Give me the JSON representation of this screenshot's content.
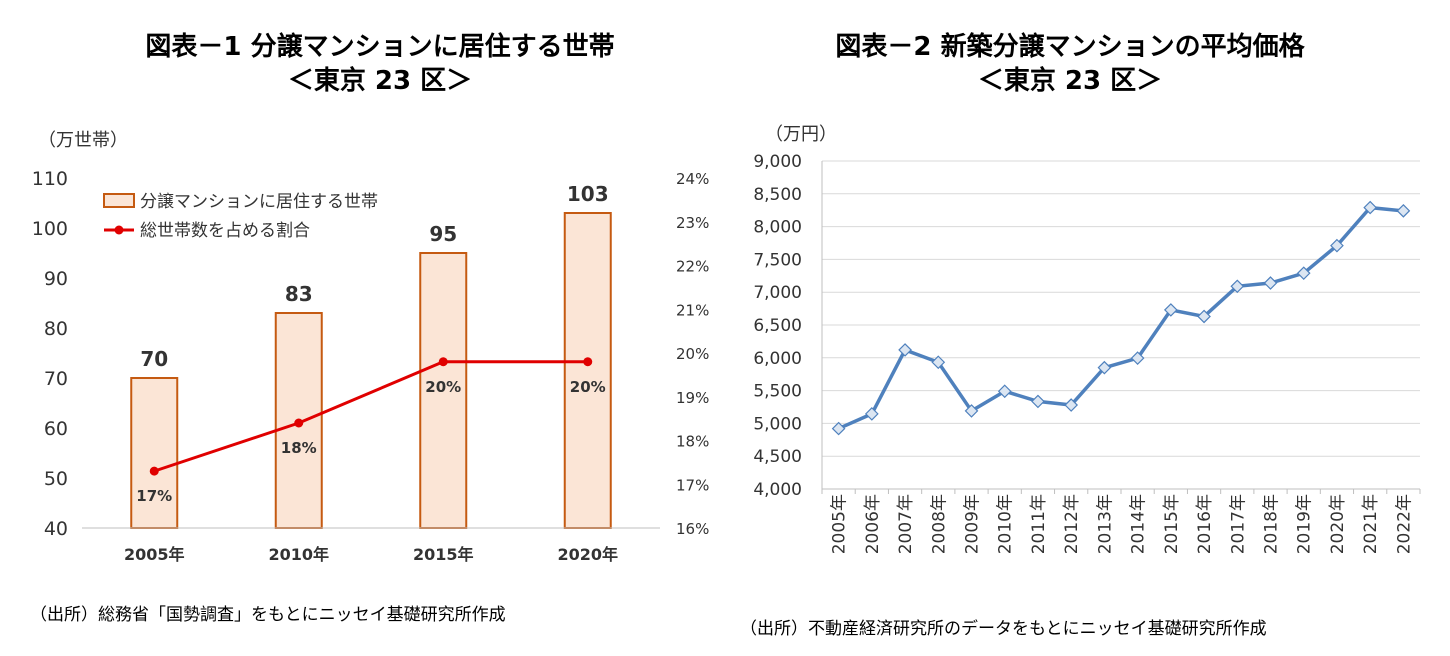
{
  "chart_data": [
    {
      "type": "bar",
      "title": "図表－1 分譲マンションに居住する世帯",
      "subtitle": "＜東京 23 区＞",
      "ylabel": "（万世帯）",
      "categories": [
        "2005年",
        "2010年",
        "2015年",
        "2020年"
      ],
      "ylim": [
        40,
        110
      ],
      "yticks": [
        "110",
        "100",
        "90",
        "80",
        "70",
        "60",
        "50",
        "40"
      ],
      "y2lim": [
        16,
        24
      ],
      "y2ticks": [
        "24%",
        "23%",
        "22%",
        "21%",
        "20%",
        "19%",
        "18%",
        "17%",
        "16%"
      ],
      "series": [
        {
          "name": "分譲マンションに居住する世帯",
          "type": "bar",
          "values": [
            70,
            83,
            95,
            103
          ],
          "labels": [
            "70",
            "83",
            "95",
            "103"
          ],
          "color": "#C55A11",
          "fill": "#FBE5D6"
        },
        {
          "name": "総世帯数を占める割合",
          "type": "line",
          "axis": "right",
          "values": [
            17.3,
            18.4,
            19.8,
            19.8
          ],
          "labels": [
            "17%",
            "18%",
            "20%",
            "20%"
          ],
          "color": "#E00000"
        }
      ],
      "legend": "top-left",
      "source": "（出所）総務省「国勢調査」をもとにニッセイ基礎研究所作成"
    },
    {
      "type": "line",
      "title": "図表－2 新築分譲マンションの平均価格",
      "subtitle": "＜東京 23 区＞",
      "ylabel": "（万円）",
      "x": [
        "2005年",
        "2006年",
        "2007年",
        "2008年",
        "2009年",
        "2010年",
        "2011年",
        "2012年",
        "2013年",
        "2014年",
        "2015年",
        "2016年",
        "2017年",
        "2018年",
        "2019年",
        "2020年",
        "2021年",
        "2022年"
      ],
      "values": [
        4921,
        5145,
        6120,
        5932,
        5190,
        5490,
        5335,
        5280,
        5850,
        5995,
        6730,
        6630,
        7090,
        7140,
        7290,
        7710,
        8290,
        8240
      ],
      "ylim": [
        4000,
        9000
      ],
      "yticks": [
        "9,000",
        "8,500",
        "8,000",
        "7,500",
        "7,000",
        "6,500",
        "6,000",
        "5,500",
        "5,000",
        "4,500",
        "4,000"
      ],
      "grid": true,
      "color": "#4F81BD",
      "marker_fill": "#DCE6F2",
      "source": "（出所）不動産経済研究所のデータをもとにニッセイ基礎研究所作成"
    }
  ]
}
